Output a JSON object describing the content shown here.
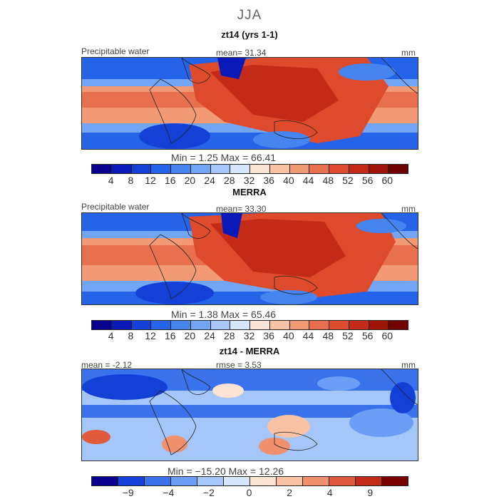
{
  "season": "JJA",
  "colors": {
    "seq": [
      "#08008f",
      "#0a1ab8",
      "#1440d8",
      "#2563e8",
      "#4685f0",
      "#72a6f5",
      "#a4c6f8",
      "#d6e6fb",
      "#fde4d2",
      "#f9c2a3",
      "#f29a76",
      "#e9704f",
      "#dd4a2c",
      "#c42a18",
      "#9e1208",
      "#6e0000"
    ],
    "div": [
      "#08008f",
      "#1440d8",
      "#3a72ec",
      "#6b9ef4",
      "#a4c6f8",
      "#d6e6fb",
      "#fde4d2",
      "#f9c2a3",
      "#f0906c",
      "#e05a3c",
      "#c42a18",
      "#7a0000"
    ]
  },
  "panels": [
    {
      "title": "zt14 (yrs 1-1)",
      "left_label": "Precipitable water",
      "center_label": "mean=  31.34",
      "units": "mm",
      "minmax": "Min =    1.25 Max =   66.41",
      "ticks": [
        "4",
        "8",
        "12",
        "16",
        "20",
        "24",
        "28",
        "32",
        "36",
        "40",
        "44",
        "48",
        "52",
        "56",
        "60"
      ]
    },
    {
      "title": "MERRA",
      "left_label": "Precipitable water",
      "center_label": "mean=  33.30",
      "units": "mm",
      "minmax": "Min =    1.38 Max =   65.46",
      "ticks": [
        "4",
        "8",
        "12",
        "16",
        "20",
        "24",
        "28",
        "32",
        "36",
        "40",
        "44",
        "48",
        "52",
        "56",
        "60"
      ]
    },
    {
      "title": "zt14 - MERRA",
      "left_label": "mean =  -2.12",
      "center_label": "rmse =   3.53",
      "units": "mm",
      "minmax": "Min = −15.20 Max =  12.26",
      "ticks": [
        "−9",
        "−4",
        "−2",
        "0",
        "2",
        "4",
        "9"
      ]
    }
  ],
  "chart_data": [
    {
      "type": "heatmap",
      "title": "zt14 (yrs 1-1)",
      "field": "Precipitable water",
      "units": "mm",
      "mean": 31.34,
      "min": 1.25,
      "max": 66.41,
      "colorbar_levels": [
        4,
        8,
        12,
        16,
        20,
        24,
        28,
        32,
        36,
        40,
        44,
        48,
        52,
        56,
        60
      ]
    },
    {
      "type": "heatmap",
      "title": "MERRA",
      "field": "Precipitable water",
      "units": "mm",
      "mean": 33.3,
      "min": 1.38,
      "max": 65.46,
      "colorbar_levels": [
        4,
        8,
        12,
        16,
        20,
        24,
        28,
        32,
        36,
        40,
        44,
        48,
        52,
        56,
        60
      ]
    },
    {
      "type": "heatmap",
      "title": "zt14 - MERRA",
      "units": "mm",
      "mean": -2.12,
      "rmse": 3.53,
      "min": -15.2,
      "max": 12.26,
      "colorbar_levels": [
        -9,
        -4,
        -2,
        0,
        2,
        4,
        9
      ]
    }
  ]
}
